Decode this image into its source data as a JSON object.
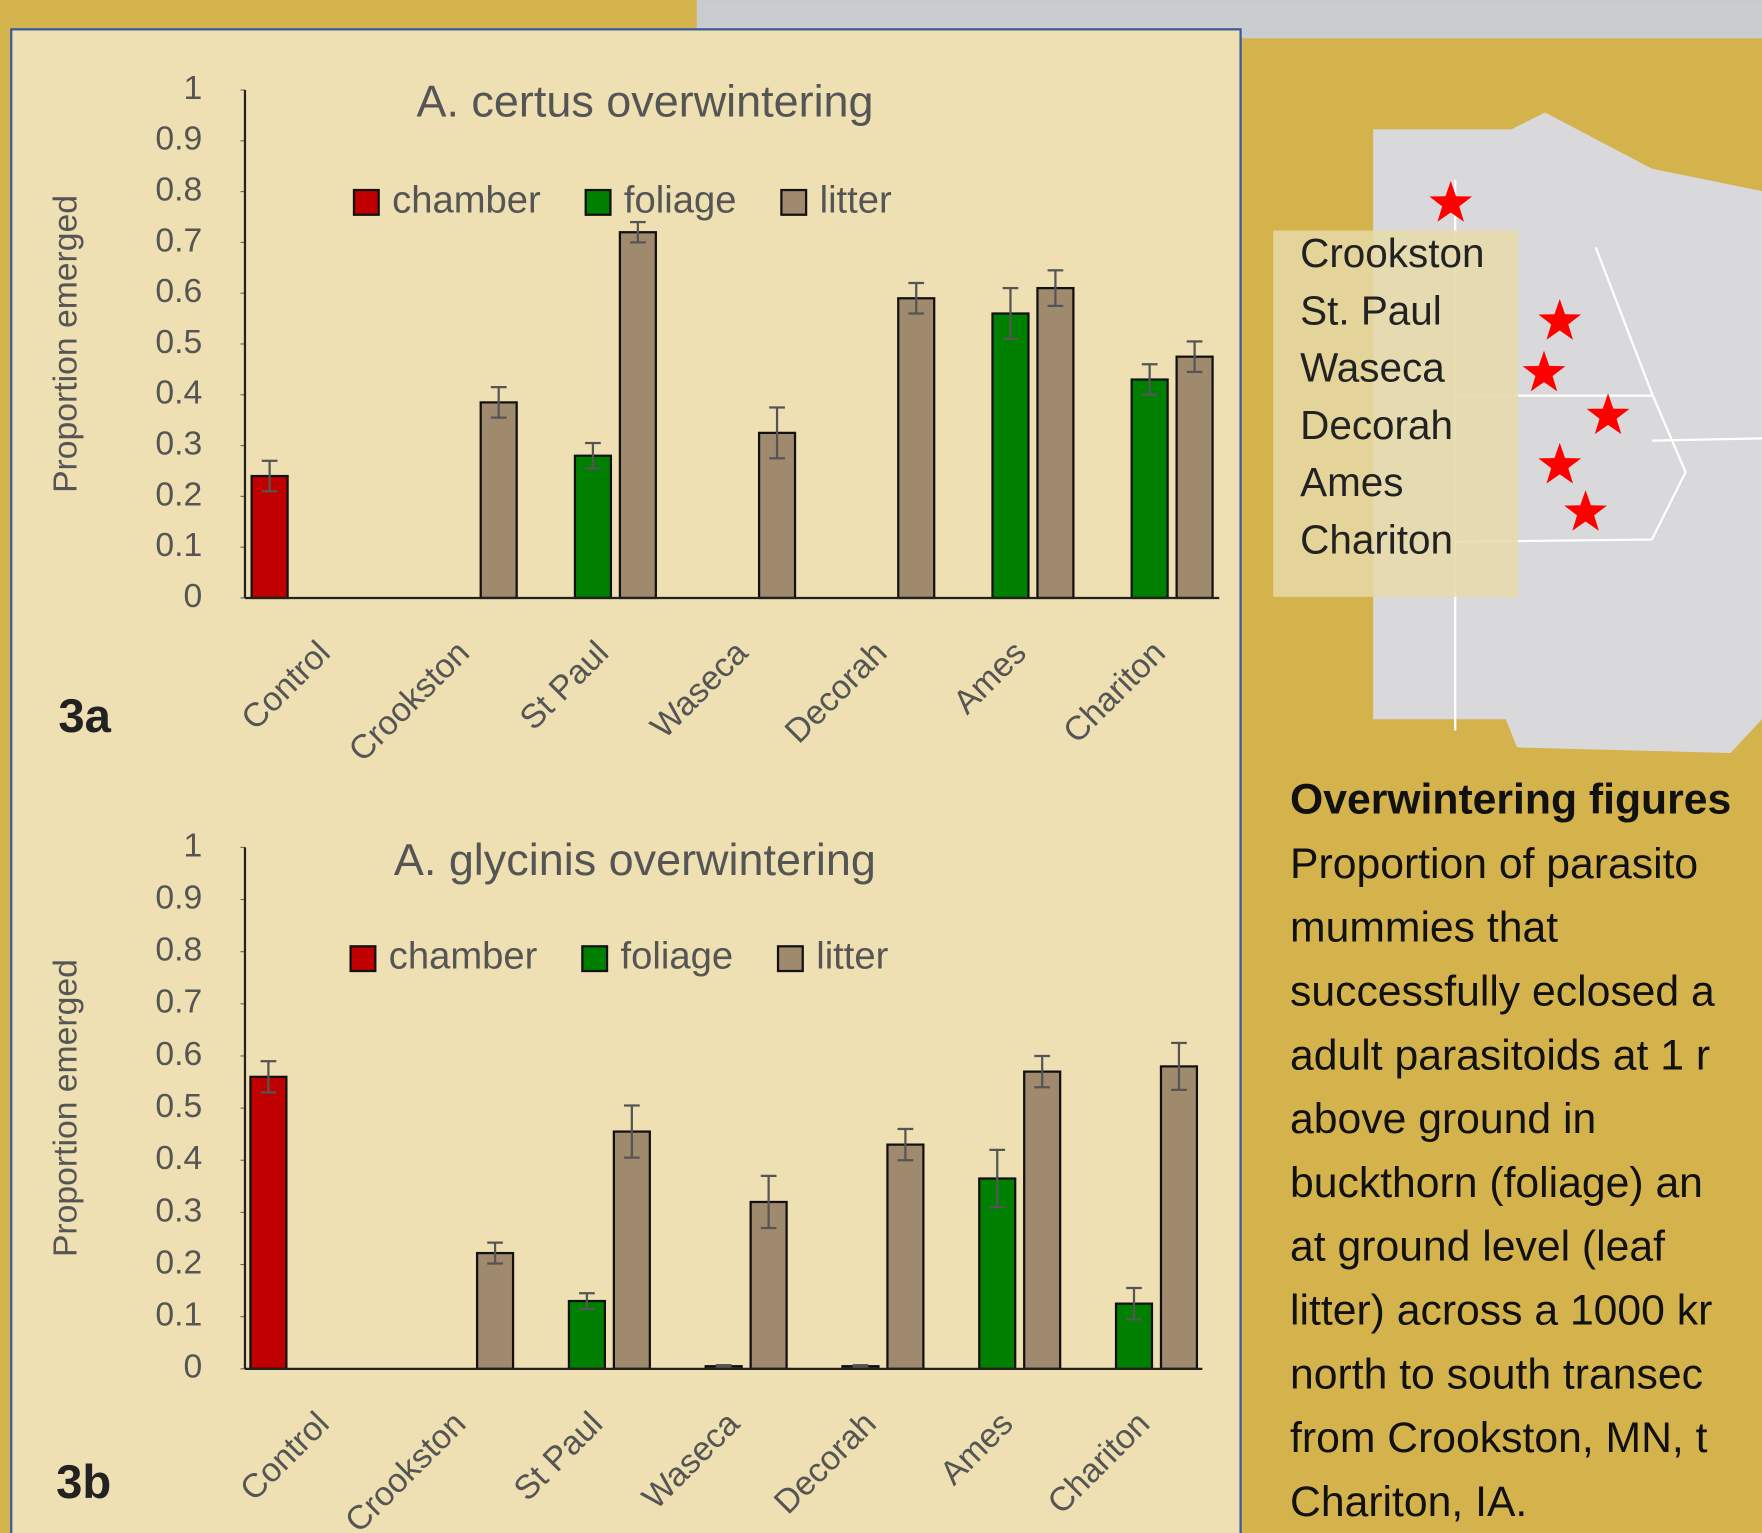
{
  "chart_data": [
    {
      "type": "bar",
      "title": "A. certus overwintering",
      "y_label": "Proportion emerged",
      "panel_label": "3a",
      "categories": [
        "Control",
        "Crookston",
        "St Paul",
        "Waseca",
        "Decorah",
        "Ames",
        "Chariton"
      ],
      "series": [
        {
          "name": "chamber",
          "color": "#c00000",
          "values": [
            0.24,
            null,
            null,
            null,
            null,
            null,
            null
          ],
          "errors": [
            0.03,
            null,
            null,
            null,
            null,
            null,
            null
          ]
        },
        {
          "name": "foliage",
          "color": "#008000",
          "values": [
            null,
            null,
            0.28,
            null,
            null,
            0.56,
            0.43
          ],
          "errors": [
            null,
            null,
            0.025,
            null,
            null,
            0.05,
            0.03
          ]
        },
        {
          "name": "litter",
          "color": "#a08a6e",
          "values": [
            null,
            0.385,
            0.72,
            0.325,
            0.59,
            0.61,
            0.475
          ],
          "errors": [
            null,
            0.03,
            0.02,
            0.05,
            0.03,
            0.035,
            0.03
          ]
        }
      ],
      "ylim": [
        0,
        1
      ],
      "yticks": [
        0,
        0.1,
        0.2,
        0.3,
        0.4,
        0.5,
        0.6,
        0.7,
        0.8,
        0.9,
        1
      ],
      "grid": false,
      "legend": "top"
    },
    {
      "type": "bar",
      "title": "A. glycinis overwintering",
      "y_label": "Proportion emerged",
      "panel_label": "3b",
      "categories": [
        "Control",
        "Crookston",
        "St Paul",
        "Waseca",
        "Decorah",
        "Ames",
        "Chariton"
      ],
      "series": [
        {
          "name": "chamber",
          "color": "#c00000",
          "values": [
            0.56,
            null,
            null,
            null,
            null,
            null,
            null
          ],
          "errors": [
            0.03,
            null,
            null,
            null,
            null,
            null,
            null
          ]
        },
        {
          "name": "foliage",
          "color": "#008000",
          "values": [
            null,
            null,
            0.13,
            0.005,
            0.005,
            0.365,
            0.125
          ],
          "errors": [
            null,
            null,
            0.015,
            0.002,
            0.002,
            0.055,
            0.03
          ]
        },
        {
          "name": "litter",
          "color": "#a08a6e",
          "values": [
            null,
            0.222,
            0.455,
            0.32,
            0.43,
            0.57,
            0.58
          ],
          "errors": [
            null,
            0.02,
            0.05,
            0.05,
            0.03,
            0.03,
            0.045
          ]
        }
      ],
      "ylim": [
        0,
        1
      ],
      "yticks": [
        0,
        0.1,
        0.2,
        0.3,
        0.4,
        0.5,
        0.6,
        0.7,
        0.8,
        0.9,
        1
      ],
      "grid": false,
      "legend": "top"
    }
  ],
  "map": {
    "labels": [
      "Crookston",
      "St. Paul",
      "Waseca",
      "Decorah",
      "Ames",
      "Chariton"
    ]
  },
  "caption": {
    "title": "Overwintering figures",
    "lines": [
      "Proportion of parasito",
      "mummies that",
      "successfully eclosed a",
      "adult parasitoids at 1 r",
      "above ground in",
      "buckthorn (foliage) an",
      "at ground level (leaf",
      "litter) across a 1000 kr",
      "north to south transec",
      "from Crookston, MN, t",
      "Chariton, IA."
    ]
  }
}
